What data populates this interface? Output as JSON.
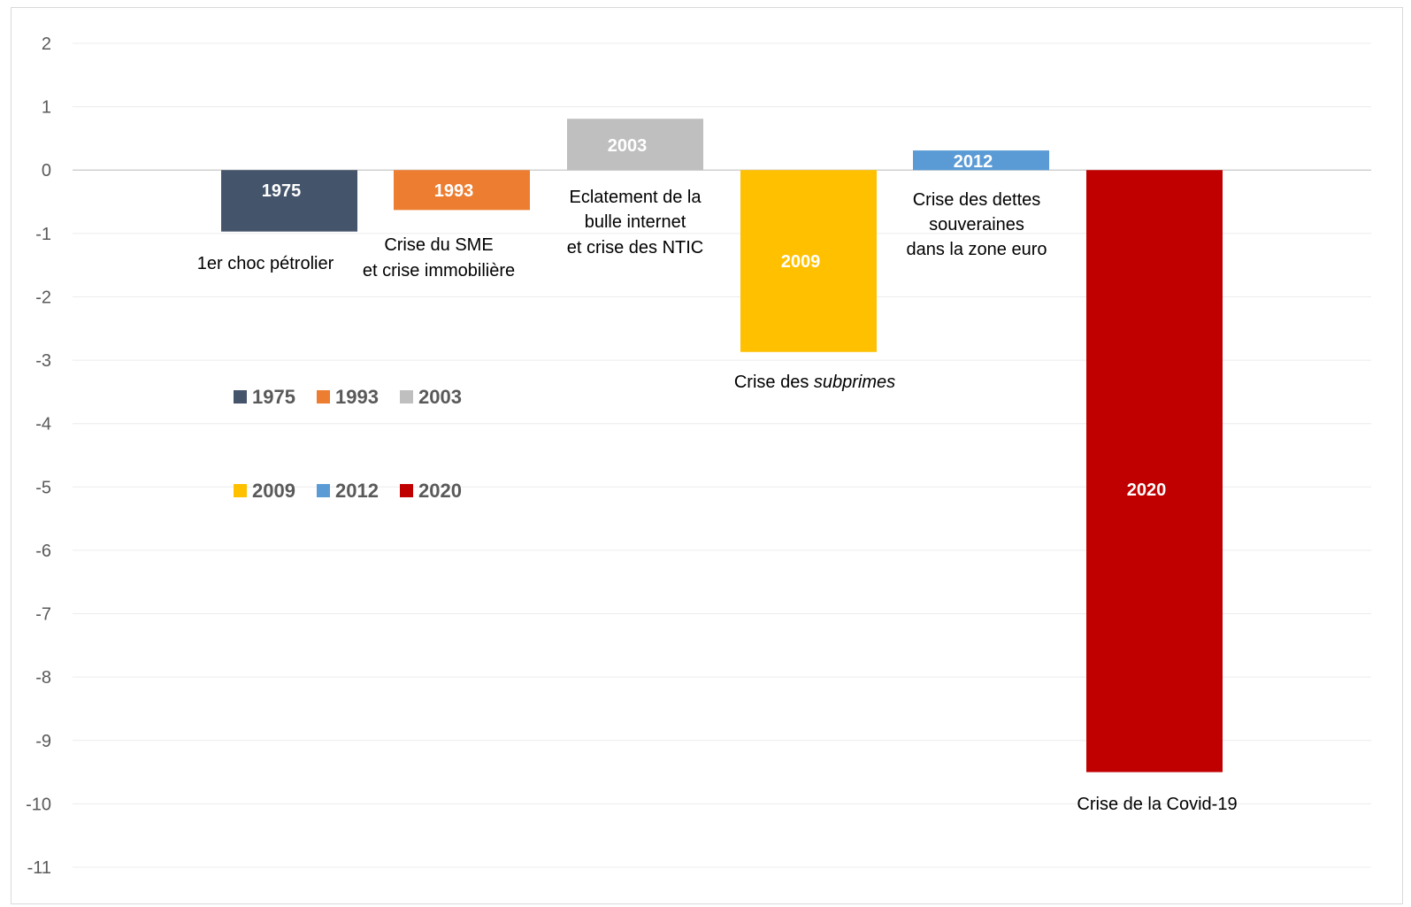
{
  "chart_data": {
    "type": "bar",
    "title": "",
    "xlabel": "",
    "ylabel": "",
    "ylim": [
      -11,
      2
    ],
    "yticks": [
      2,
      1,
      0,
      -1,
      -2,
      -3,
      -4,
      -5,
      -6,
      -7,
      -8,
      -9,
      -10,
      -11
    ],
    "grid": true,
    "bars": [
      {
        "label": "1975",
        "value": -0.97,
        "color": "#44546A",
        "annotation": [
          "1er choc pétrolier"
        ]
      },
      {
        "label": "1993",
        "value": -0.63,
        "color": "#ED7D31",
        "annotation": [
          "Crise du SME",
          "et crise immobilière"
        ]
      },
      {
        "label": "2003",
        "value": 0.81,
        "color": "#BFBFBF",
        "annotation": [
          "Eclatement de la",
          "bulle internet",
          "et  crise des NTIC"
        ]
      },
      {
        "label": "2009",
        "value": -2.87,
        "color": "#FFC000",
        "annotation": [
          "Crise des ",
          "subprimes"
        ]
      },
      {
        "label": "2012",
        "value": 0.31,
        "color": "#5B9BD5",
        "annotation": [
          "Crise des dettes",
          "souveraines",
          "dans la zone euro"
        ]
      },
      {
        "label": "2020",
        "value": -9.5,
        "color": "#C00000",
        "annotation": [
          "Crise de la Covid-19"
        ]
      }
    ],
    "legend": {
      "placement": "left-middle",
      "rows": [
        [
          {
            "label": "1975",
            "color": "#44546A"
          },
          {
            "label": "1993",
            "color": "#ED7D31"
          },
          {
            "label": "2003",
            "color": "#BFBFBF"
          }
        ],
        [
          {
            "label": "2009",
            "color": "#FFC000"
          },
          {
            "label": "2012",
            "color": "#5B9BD5"
          },
          {
            "label": "2020",
            "color": "#C00000"
          }
        ]
      ]
    }
  }
}
